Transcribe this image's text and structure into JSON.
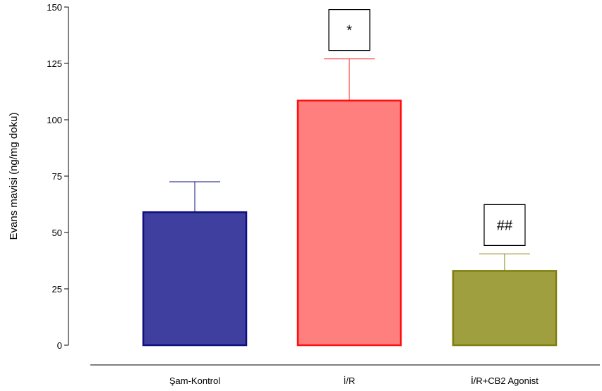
{
  "chart_data": {
    "type": "bar",
    "title": "",
    "xlabel": "",
    "ylabel": "Evans mavisi (ng/mg doku)",
    "ylim": [
      0,
      150
    ],
    "yticks": [
      0,
      25,
      50,
      75,
      100,
      125,
      150
    ],
    "ytick_labels": [
      "0",
      "25",
      "50",
      "75",
      "100",
      "125",
      "150"
    ],
    "categories": [
      "Şam-Kontrol",
      "İ/R",
      "İ/R+CB2 Agonist"
    ],
    "values": [
      59,
      108.5,
      33
    ],
    "errors": [
      13.5,
      18.5,
      7.5
    ],
    "annotations": [
      "",
      "*",
      "##"
    ],
    "colors": {
      "fill": [
        "#3f3f9f",
        "#ff7f7f",
        "#9f9f3f"
      ],
      "edge": [
        "#0f0f7f",
        "#ff0f0f",
        "#7f7f0f"
      ]
    },
    "grid": false
  }
}
